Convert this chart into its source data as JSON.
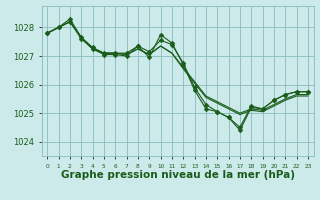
{
  "bg_color": "#cceaea",
  "grid_color": "#88bbbb",
  "line_color": "#1a5c1a",
  "marker_color": "#1a5c1a",
  "xlabel": "Graphe pression niveau de la mer (hPa)",
  "xlabel_fontsize": 7.5,
  "xlabel_color": "#1a5c1a",
  "ylim": [
    1023.5,
    1028.75
  ],
  "xlim": [
    -0.5,
    23.5
  ],
  "yticks": [
    1024,
    1025,
    1026,
    1027,
    1028
  ],
  "series": {
    "smooth1": [
      1027.8,
      1028.0,
      1028.2,
      1027.65,
      1027.25,
      1027.1,
      1027.1,
      1027.05,
      1027.25,
      1027.05,
      1027.35,
      1027.1,
      1026.6,
      1026.1,
      1025.6,
      1025.4,
      1025.2,
      1025.0,
      1025.15,
      1025.1,
      1025.3,
      1025.5,
      1025.65,
      1025.65
    ],
    "smooth2": [
      1027.8,
      1028.0,
      1028.2,
      1027.65,
      1027.25,
      1027.1,
      1027.1,
      1027.05,
      1027.25,
      1027.05,
      1027.35,
      1027.1,
      1026.55,
      1026.05,
      1025.55,
      1025.35,
      1025.15,
      1024.95,
      1025.1,
      1025.05,
      1025.25,
      1025.45,
      1025.6,
      1025.6
    ],
    "markers1": [
      1027.8,
      1028.0,
      1028.3,
      1027.65,
      1027.3,
      1027.1,
      1027.1,
      1027.1,
      1027.35,
      1027.15,
      1027.55,
      1027.4,
      1026.75,
      1025.9,
      1025.3,
      1025.05,
      1024.85,
      1024.5,
      1025.25,
      1025.15,
      1025.45,
      1025.65,
      1025.75,
      1025.75
    ],
    "markers2": [
      1027.8,
      1028.0,
      1028.2,
      1027.6,
      1027.25,
      1027.05,
      1027.05,
      1027.0,
      1027.35,
      1026.95,
      1027.75,
      1027.45,
      1026.7,
      1025.8,
      1025.15,
      1025.05,
      1024.85,
      1024.4,
      1025.2,
      1025.15,
      1025.45,
      1025.65,
      1025.75,
      1025.75
    ]
  },
  "marker_size": 2.5
}
